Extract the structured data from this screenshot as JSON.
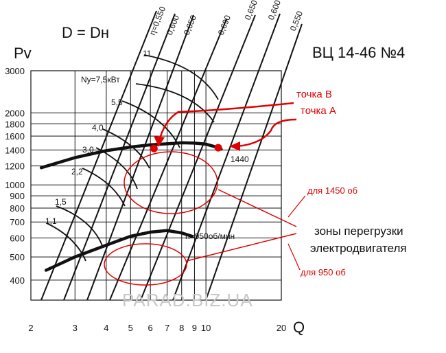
{
  "chart_data": {
    "type": "line",
    "title": "ВЦ 14-46 №4",
    "subtitle": "D = Dн",
    "xlabel": "Q",
    "ylabel": "Pv",
    "x_scale": "log",
    "y_scale": "log",
    "xlim": [
      2,
      20
    ],
    "ylim": [
      330,
      3000
    ],
    "grid": true,
    "x_ticks": [
      {
        "value": 2,
        "label": "2"
      },
      {
        "value": 3,
        "label": "3"
      },
      {
        "value": 4,
        "label": "4"
      },
      {
        "value": 5,
        "label": "5"
      },
      {
        "value": 6,
        "label": "6"
      },
      {
        "value": 7,
        "label": "7"
      },
      {
        "value": 8,
        "label": "8"
      },
      {
        "value": 9,
        "label": "9"
      },
      {
        "value": 10,
        "label": "10"
      },
      {
        "value": 20,
        "label": "20"
      }
    ],
    "y_ticks": [
      {
        "value": 400,
        "label": "400"
      },
      {
        "value": 500,
        "label": "500"
      },
      {
        "value": 600,
        "label": "600"
      },
      {
        "value": 700,
        "label": "700"
      },
      {
        "value": 800,
        "label": "800"
      },
      {
        "value": 900,
        "label": "900"
      },
      {
        "value": 1000,
        "label": "1000"
      },
      {
        "value": 1200,
        "label": "1200"
      },
      {
        "value": 1400,
        "label": "1400"
      },
      {
        "value": 1600,
        "label": "1600"
      },
      {
        "value": 1800,
        "label": "1800"
      },
      {
        "value": 2000,
        "label": "2000"
      },
      {
        "value": 3000,
        "label": "3000"
      }
    ],
    "series": [
      {
        "name": "1440",
        "values": [
          [
            2.2,
            1180
          ],
          [
            3.0,
            1300
          ],
          [
            4.0,
            1390
          ],
          [
            5.0,
            1440
          ],
          [
            6.0,
            1470
          ],
          [
            7.0,
            1485
          ],
          [
            8.0,
            1500
          ],
          [
            9.0,
            1495
          ],
          [
            10.0,
            1480
          ],
          [
            11.0,
            1440
          ],
          [
            11.5,
            1410
          ]
        ]
      },
      {
        "name": "n=950об/мин",
        "values": [
          [
            2.3,
            440
          ],
          [
            3.0,
            500
          ],
          [
            4.0,
            560
          ],
          [
            5.0,
            610
          ],
          [
            6.0,
            635
          ],
          [
            7.0,
            645
          ],
          [
            8.0,
            630
          ],
          [
            8.8,
            610
          ]
        ]
      }
    ],
    "efficiency_lines": [
      "η=0,550",
      "0,600",
      "0,650",
      "0,690",
      "0,650",
      "0,600",
      "0,550"
    ],
    "power_labels": [
      "11",
      "Ny=7,5кВт",
      "5,5",
      "4,0",
      "3,0",
      "2,2",
      "1,5",
      "1,1"
    ],
    "points": [
      {
        "label": "точка В",
        "x": 6.2,
        "y": 1420
      },
      {
        "label": "точка А",
        "x": 11.2,
        "y": 1430
      }
    ],
    "annotations": {
      "zones": "зоны перегрузки",
      "motor": "электродвигателя",
      "zone_1450": "для 1450 об",
      "zone_950": "для 950 об"
    },
    "watermark": "PARAD.BIZ.UA",
    "colors": {
      "curve": "#111111",
      "annotation": "#e00000",
      "grid": "#111111"
    }
  }
}
